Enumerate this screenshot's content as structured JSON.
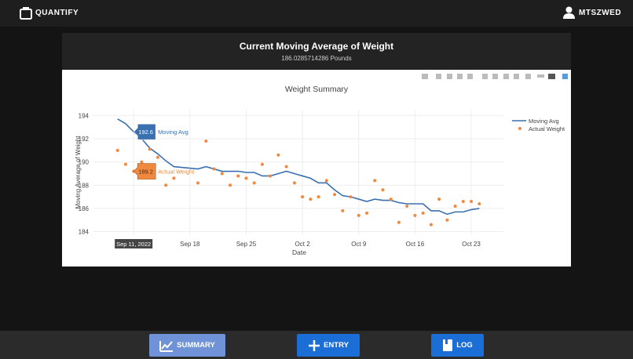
{
  "header": {
    "brand": "QUANTIFY",
    "user": "MTSZWED"
  },
  "panel": {
    "title": "Current Moving Average of Weight",
    "subtitle": "186.0285714286 Pounds"
  },
  "chart_data": {
    "type": "line",
    "title": "Weight Summary",
    "x_label": "Date",
    "y_label": "Moving Average of Weight",
    "x": [
      "Sep 9",
      "Sep 10",
      "Sep 11",
      "Sep 12",
      "Sep 13",
      "Sep 14",
      "Sep 15",
      "Sep 16",
      "Sep 19",
      "Sep 20",
      "Sep 21",
      "Sep 22",
      "Sep 23",
      "Sep 24",
      "Sep 25",
      "Sep 26",
      "Sep 27",
      "Sep 28",
      "Sep 29",
      "Sep 30",
      "Oct 1",
      "Oct 2",
      "Oct 3",
      "Oct 4",
      "Oct 5",
      "Oct 6",
      "Oct 7",
      "Oct 8",
      "Oct 9",
      "Oct 10",
      "Oct 11",
      "Oct 12",
      "Oct 13",
      "Oct 14",
      "Oct 15",
      "Oct 16",
      "Oct 17",
      "Oct 18",
      "Oct 19",
      "Oct 20",
      "Oct 21",
      "Oct 22",
      "Oct 23",
      "Oct 24"
    ],
    "series": [
      {
        "name": "Moving Avg",
        "color": "#3a6fb0",
        "mode": "line",
        "values": [
          193.7,
          193.3,
          192.6,
          192.0,
          191.2,
          190.7,
          190.1,
          189.6,
          189.4,
          189.6,
          189.4,
          189.2,
          189.2,
          189.2,
          189.1,
          189.1,
          188.8,
          188.8,
          189.0,
          189.2,
          189.0,
          188.8,
          188.6,
          188.2,
          188.2,
          187.6,
          187.1,
          187.0,
          186.8,
          186.6,
          186.8,
          186.7,
          186.7,
          186.5,
          186.4,
          186.4,
          186.4,
          185.8,
          185.8,
          185.5,
          185.7,
          185.7,
          185.9,
          186.0
        ]
      },
      {
        "name": "Actual Weight",
        "color": "#f0883e",
        "mode": "markers",
        "values": [
          191.0,
          189.8,
          189.2,
          190.0,
          191.1,
          190.4,
          188.0,
          188.6,
          188.2,
          191.8,
          189.4,
          189.0,
          188.0,
          188.8,
          188.6,
          188.2,
          189.8,
          188.8,
          190.6,
          189.6,
          188.2,
          187.0,
          186.8,
          187.0,
          188.4,
          187.2,
          185.8,
          187.0,
          185.4,
          185.6,
          188.4,
          187.6,
          186.8,
          184.8,
          186.2,
          185.4,
          185.6,
          184.6,
          186.8,
          185.0,
          186.2,
          186.6,
          186.6,
          186.4
        ]
      }
    ],
    "xlim": [
      "Sep 6",
      "Oct 27"
    ],
    "xticks": [
      "Sep 11",
      "Sep 18",
      "Sep 25",
      "Oct 2",
      "Oct 9",
      "Oct 16",
      "Oct 23"
    ],
    "ylim": [
      183.7,
      194.5
    ],
    "yticks": [
      184,
      186,
      188,
      190,
      192,
      194
    ],
    "grid": true,
    "hover_index": 2,
    "hover_date": "Sep 11, 2022"
  },
  "nav": {
    "summary": "SUMMARY",
    "entry": "ENTRY",
    "log": "LOG"
  }
}
